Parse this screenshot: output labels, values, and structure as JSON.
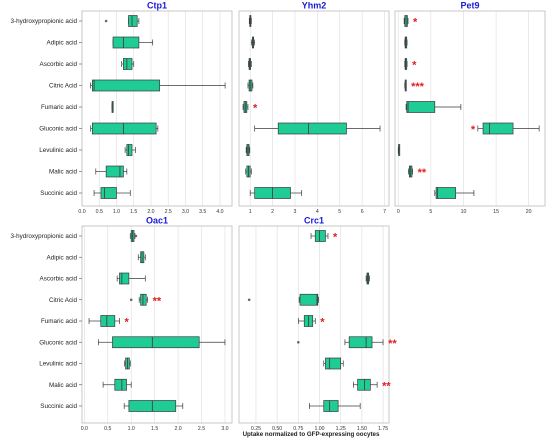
{
  "colors": {
    "box": "#1fcc95",
    "box_edge": "#3a3a3a",
    "title": "#1a1ad6",
    "significance": "#e02020",
    "grid": "#dddddd",
    "frame": "#bbbbbb"
  },
  "chart_data": {
    "xlabel": "Uptake normalized to GFP-expressing oocytes",
    "categories": [
      "3-hydroxypropionic acid",
      "Adipic acid",
      "Ascorbic acid",
      "Citric Acid",
      "Fumaric acid",
      "Gluconic acid",
      "Levulinic acid",
      "Malic acid",
      "Succinic acid"
    ],
    "panels": [
      {
        "title": "Ctp1",
        "type": "box",
        "xlim": [
          0,
          4.35
        ],
        "xticks": [
          "0.0",
          "0.5",
          "1.0",
          "1.5",
          "2.0",
          "2.5",
          "3.0",
          "3.5",
          "4.0"
        ],
        "xtick_values": [
          0,
          0.5,
          1,
          1.5,
          2,
          2.5,
          3,
          3.5,
          4
        ],
        "boxes": [
          {
            "q1": 1.35,
            "median": 1.45,
            "q3": 1.6,
            "whislo": 1.35,
            "whishi": 1.65,
            "fliers": [
              0.7
            ],
            "sig": ""
          },
          {
            "q1": 0.9,
            "median": 1.2,
            "q3": 1.65,
            "whislo": 0.9,
            "whishi": 2.05,
            "fliers": [],
            "sig": ""
          },
          {
            "q1": 1.2,
            "median": 1.3,
            "q3": 1.45,
            "whislo": 1.15,
            "whishi": 1.5,
            "fliers": [],
            "sig": ""
          },
          {
            "q1": 0.3,
            "median": 0.35,
            "q3": 2.25,
            "whislo": 0.25,
            "whishi": 4.15,
            "fliers": [],
            "sig": ""
          },
          {
            "q1": 0.87,
            "median": 0.88,
            "q3": 0.89,
            "whislo": 0.87,
            "whishi": 0.89,
            "fliers": [],
            "sig": ""
          },
          {
            "q1": 0.3,
            "median": 1.2,
            "q3": 2.15,
            "whislo": 0.25,
            "whishi": 2.2,
            "fliers": [],
            "sig": ""
          },
          {
            "q1": 1.3,
            "median": 1.35,
            "q3": 1.45,
            "whislo": 1.25,
            "whishi": 1.55,
            "fliers": [],
            "sig": ""
          },
          {
            "q1": 0.7,
            "median": 1.1,
            "q3": 1.2,
            "whislo": 0.4,
            "whishi": 1.3,
            "fliers": [],
            "sig": ""
          },
          {
            "q1": 0.55,
            "median": 0.65,
            "q3": 1.0,
            "whislo": 0.35,
            "whishi": 1.4,
            "fliers": [],
            "sig": ""
          }
        ]
      },
      {
        "title": "Yhm2",
        "type": "box",
        "xlim": [
          0.5,
          7.2
        ],
        "xticks": [
          "1",
          "2",
          "3",
          "4",
          "5",
          "6",
          "7"
        ],
        "xtick_values": [
          1,
          2,
          3,
          4,
          5,
          6,
          7
        ],
        "boxes": [
          {
            "q1": 0.98,
            "median": 1.0,
            "q3": 1.02,
            "whislo": 0.96,
            "whishi": 1.05,
            "fliers": [],
            "sig": ""
          },
          {
            "q1": 1.1,
            "median": 1.12,
            "q3": 1.15,
            "whislo": 1.05,
            "whishi": 1.2,
            "fliers": [],
            "sig": ""
          },
          {
            "q1": 0.95,
            "median": 0.98,
            "q3": 1.02,
            "whislo": 0.92,
            "whishi": 1.05,
            "fliers": [],
            "sig": ""
          },
          {
            "q1": 0.95,
            "median": 1.0,
            "q3": 1.08,
            "whislo": 0.9,
            "whishi": 1.12,
            "fliers": [],
            "sig": ""
          },
          {
            "q1": 0.72,
            "median": 0.78,
            "q3": 0.85,
            "whislo": 0.68,
            "whishi": 0.9,
            "fliers": [],
            "sig": "*"
          },
          {
            "q1": 2.25,
            "median": 3.6,
            "q3": 5.3,
            "whislo": 1.2,
            "whishi": 6.8,
            "fliers": [],
            "sig": ""
          },
          {
            "q1": 0.85,
            "median": 0.9,
            "q3": 0.95,
            "whislo": 0.82,
            "whishi": 0.98,
            "fliers": [],
            "sig": ""
          },
          {
            "q1": 0.85,
            "median": 0.92,
            "q3": 1.0,
            "whislo": 0.8,
            "whishi": 1.05,
            "fliers": [],
            "sig": ""
          },
          {
            "q1": 1.2,
            "median": 2.0,
            "q3": 2.8,
            "whislo": 1.0,
            "whishi": 3.3,
            "fliers": [],
            "sig": ""
          }
        ]
      },
      {
        "title": "Pet9",
        "type": "box",
        "xlim": [
          -0.5,
          22.5
        ],
        "xticks": [
          "0",
          "5",
          "10",
          "15",
          "20"
        ],
        "xtick_values": [
          0,
          5,
          10,
          15,
          20
        ],
        "boxes": [
          {
            "q1": 1.0,
            "median": 1.2,
            "q3": 1.4,
            "whislo": 0.9,
            "whishi": 1.5,
            "fliers": [],
            "sig": "*"
          },
          {
            "q1": 1.05,
            "median": 1.15,
            "q3": 1.3,
            "whislo": 1.0,
            "whishi": 1.35,
            "fliers": [],
            "sig": ""
          },
          {
            "q1": 1.05,
            "median": 1.15,
            "q3": 1.3,
            "whislo": 1.0,
            "whishi": 1.35,
            "fliers": [],
            "sig": "*"
          },
          {
            "q1": 1.05,
            "median": 1.1,
            "q3": 1.15,
            "whislo": 1.0,
            "whishi": 1.2,
            "fliers": [],
            "sig": "***"
          },
          {
            "q1": 1.3,
            "median": 1.5,
            "q3": 5.6,
            "whislo": 1.2,
            "whishi": 9.6,
            "fliers": [],
            "sig": ""
          },
          {
            "q1": 13.0,
            "median": 14.0,
            "q3": 17.6,
            "whislo": 12.2,
            "whishi": 21.6,
            "fliers": [],
            "sig": "*"
          },
          {
            "q1": 0.05,
            "median": 0.08,
            "q3": 0.12,
            "whislo": 0.0,
            "whishi": 0.15,
            "fliers": [],
            "sig": ""
          },
          {
            "q1": 1.7,
            "median": 1.85,
            "q3": 2.1,
            "whislo": 1.55,
            "whishi": 2.2,
            "fliers": [],
            "sig": "**"
          },
          {
            "q1": 5.8,
            "median": 6.0,
            "q3": 8.8,
            "whislo": 5.6,
            "whishi": 11.6,
            "fliers": [],
            "sig": ""
          }
        ]
      },
      {
        "title": "Oac1",
        "type": "box",
        "xlim": [
          -0.05,
          3.15
        ],
        "xticks": [
          "0.0",
          "0.5",
          "1.0",
          "1.5",
          "2.0",
          "2.5",
          "3.0"
        ],
        "xtick_values": [
          0,
          0.5,
          1,
          1.5,
          2,
          2.5,
          3
        ],
        "boxes": [
          {
            "q1": 1.0,
            "median": 1.03,
            "q3": 1.06,
            "whislo": 0.98,
            "whishi": 1.08,
            "fliers": [
              1.1
            ],
            "sig": ""
          },
          {
            "q1": 1.2,
            "median": 1.23,
            "q3": 1.27,
            "whislo": 1.15,
            "whishi": 1.3,
            "fliers": [],
            "sig": ""
          },
          {
            "q1": 0.75,
            "median": 0.8,
            "q3": 0.95,
            "whislo": 0.7,
            "whishi": 1.3,
            "fliers": [],
            "sig": ""
          },
          {
            "q1": 1.2,
            "median": 1.25,
            "q3": 1.32,
            "whislo": 1.17,
            "whishi": 1.35,
            "fliers": [
              1.0
            ],
            "sig": "**"
          },
          {
            "q1": 0.35,
            "median": 0.48,
            "q3": 0.65,
            "whislo": 0.1,
            "whishi": 0.75,
            "fliers": [],
            "sig": "*"
          },
          {
            "q1": 0.6,
            "median": 1.45,
            "q3": 2.45,
            "whislo": 0.3,
            "whishi": 3.0,
            "fliers": [],
            "sig": ""
          },
          {
            "q1": 0.88,
            "median": 0.92,
            "q3": 0.96,
            "whislo": 0.86,
            "whishi": 0.98,
            "fliers": [],
            "sig": ""
          },
          {
            "q1": 0.65,
            "median": 0.8,
            "q3": 0.9,
            "whislo": 0.4,
            "whishi": 1.0,
            "fliers": [],
            "sig": ""
          },
          {
            "q1": 0.95,
            "median": 1.45,
            "q3": 1.95,
            "whislo": 0.85,
            "whishi": 2.1,
            "fliers": [],
            "sig": ""
          }
        ]
      },
      {
        "title": "Crc1",
        "type": "box",
        "xlim": [
          0.05,
          1.82
        ],
        "xticks": [
          "0.25",
          "0.50",
          "0.75",
          "1.00",
          "1.25",
          "1.50",
          "1.75"
        ],
        "xtick_values": [
          0.25,
          0.5,
          0.75,
          1.0,
          1.25,
          1.5,
          1.75
        ],
        "boxes": [
          {
            "q1": 0.95,
            "median": 1.0,
            "q3": 1.07,
            "whislo": 0.9,
            "whishi": 1.1,
            "fliers": [],
            "sig": "*"
          },
          {
            "q1": null,
            "median": null,
            "q3": null,
            "whislo": null,
            "whishi": null,
            "fliers": [],
            "sig": ""
          },
          {
            "q1": 1.56,
            "median": 1.57,
            "q3": 1.58,
            "whislo": 1.55,
            "whishi": 1.59,
            "fliers": [],
            "sig": ""
          },
          {
            "q1": 0.77,
            "median": 0.97,
            "q3": 0.98,
            "whislo": 0.76,
            "whishi": 0.99,
            "fliers": [
              0.17
            ],
            "sig": ""
          },
          {
            "q1": 0.82,
            "median": 0.87,
            "q3": 0.92,
            "whislo": 0.75,
            "whishi": 0.95,
            "fliers": [],
            "sig": "*"
          },
          {
            "q1": 1.35,
            "median": 1.55,
            "q3": 1.62,
            "whislo": 1.3,
            "whishi": 1.75,
            "fliers": [
              0.75
            ],
            "sig": "**"
          },
          {
            "q1": 1.07,
            "median": 1.12,
            "q3": 1.25,
            "whislo": 1.05,
            "whishi": 1.28,
            "fliers": [],
            "sig": ""
          },
          {
            "q1": 1.45,
            "median": 1.53,
            "q3": 1.6,
            "whislo": 1.4,
            "whishi": 1.68,
            "fliers": [],
            "sig": "**"
          },
          {
            "q1": 1.05,
            "median": 1.12,
            "q3": 1.22,
            "whislo": 0.88,
            "whishi": 1.48,
            "fliers": [],
            "sig": ""
          }
        ]
      }
    ]
  }
}
